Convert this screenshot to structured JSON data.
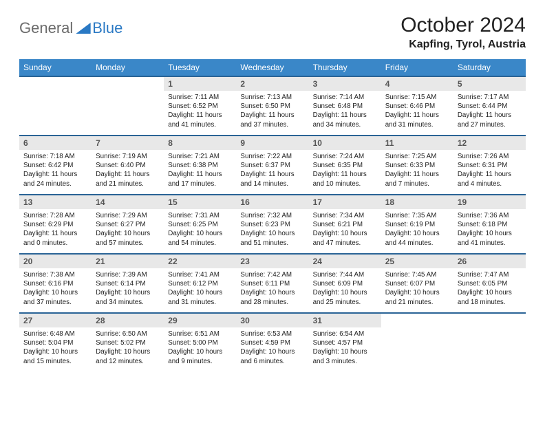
{
  "logo": {
    "word1": "General",
    "word2": "Blue"
  },
  "title": "October 2024",
  "subtitle": "Kapfing, Tyrol, Austria",
  "colors": {
    "header_bg": "#3a87c8",
    "header_border": "#2a6496",
    "daynum_bg": "#e8e8e8",
    "logo_gray": "#6b6b6b",
    "logo_blue": "#2a79c4"
  },
  "weekdays": [
    "Sunday",
    "Monday",
    "Tuesday",
    "Wednesday",
    "Thursday",
    "Friday",
    "Saturday"
  ],
  "weeks": [
    [
      null,
      null,
      {
        "n": "1",
        "sr": "7:11 AM",
        "ss": "6:52 PM",
        "dl": "11 hours and 41 minutes."
      },
      {
        "n": "2",
        "sr": "7:13 AM",
        "ss": "6:50 PM",
        "dl": "11 hours and 37 minutes."
      },
      {
        "n": "3",
        "sr": "7:14 AM",
        "ss": "6:48 PM",
        "dl": "11 hours and 34 minutes."
      },
      {
        "n": "4",
        "sr": "7:15 AM",
        "ss": "6:46 PM",
        "dl": "11 hours and 31 minutes."
      },
      {
        "n": "5",
        "sr": "7:17 AM",
        "ss": "6:44 PM",
        "dl": "11 hours and 27 minutes."
      }
    ],
    [
      {
        "n": "6",
        "sr": "7:18 AM",
        "ss": "6:42 PM",
        "dl": "11 hours and 24 minutes."
      },
      {
        "n": "7",
        "sr": "7:19 AM",
        "ss": "6:40 PM",
        "dl": "11 hours and 21 minutes."
      },
      {
        "n": "8",
        "sr": "7:21 AM",
        "ss": "6:38 PM",
        "dl": "11 hours and 17 minutes."
      },
      {
        "n": "9",
        "sr": "7:22 AM",
        "ss": "6:37 PM",
        "dl": "11 hours and 14 minutes."
      },
      {
        "n": "10",
        "sr": "7:24 AM",
        "ss": "6:35 PM",
        "dl": "11 hours and 10 minutes."
      },
      {
        "n": "11",
        "sr": "7:25 AM",
        "ss": "6:33 PM",
        "dl": "11 hours and 7 minutes."
      },
      {
        "n": "12",
        "sr": "7:26 AM",
        "ss": "6:31 PM",
        "dl": "11 hours and 4 minutes."
      }
    ],
    [
      {
        "n": "13",
        "sr": "7:28 AM",
        "ss": "6:29 PM",
        "dl": "11 hours and 0 minutes."
      },
      {
        "n": "14",
        "sr": "7:29 AM",
        "ss": "6:27 PM",
        "dl": "10 hours and 57 minutes."
      },
      {
        "n": "15",
        "sr": "7:31 AM",
        "ss": "6:25 PM",
        "dl": "10 hours and 54 minutes."
      },
      {
        "n": "16",
        "sr": "7:32 AM",
        "ss": "6:23 PM",
        "dl": "10 hours and 51 minutes."
      },
      {
        "n": "17",
        "sr": "7:34 AM",
        "ss": "6:21 PM",
        "dl": "10 hours and 47 minutes."
      },
      {
        "n": "18",
        "sr": "7:35 AM",
        "ss": "6:19 PM",
        "dl": "10 hours and 44 minutes."
      },
      {
        "n": "19",
        "sr": "7:36 AM",
        "ss": "6:18 PM",
        "dl": "10 hours and 41 minutes."
      }
    ],
    [
      {
        "n": "20",
        "sr": "7:38 AM",
        "ss": "6:16 PM",
        "dl": "10 hours and 37 minutes."
      },
      {
        "n": "21",
        "sr": "7:39 AM",
        "ss": "6:14 PM",
        "dl": "10 hours and 34 minutes."
      },
      {
        "n": "22",
        "sr": "7:41 AM",
        "ss": "6:12 PM",
        "dl": "10 hours and 31 minutes."
      },
      {
        "n": "23",
        "sr": "7:42 AM",
        "ss": "6:11 PM",
        "dl": "10 hours and 28 minutes."
      },
      {
        "n": "24",
        "sr": "7:44 AM",
        "ss": "6:09 PM",
        "dl": "10 hours and 25 minutes."
      },
      {
        "n": "25",
        "sr": "7:45 AM",
        "ss": "6:07 PM",
        "dl": "10 hours and 21 minutes."
      },
      {
        "n": "26",
        "sr": "7:47 AM",
        "ss": "6:05 PM",
        "dl": "10 hours and 18 minutes."
      }
    ],
    [
      {
        "n": "27",
        "sr": "6:48 AM",
        "ss": "5:04 PM",
        "dl": "10 hours and 15 minutes."
      },
      {
        "n": "28",
        "sr": "6:50 AM",
        "ss": "5:02 PM",
        "dl": "10 hours and 12 minutes."
      },
      {
        "n": "29",
        "sr": "6:51 AM",
        "ss": "5:00 PM",
        "dl": "10 hours and 9 minutes."
      },
      {
        "n": "30",
        "sr": "6:53 AM",
        "ss": "4:59 PM",
        "dl": "10 hours and 6 minutes."
      },
      {
        "n": "31",
        "sr": "6:54 AM",
        "ss": "4:57 PM",
        "dl": "10 hours and 3 minutes."
      },
      null,
      null
    ]
  ],
  "labels": {
    "sunrise": "Sunrise:",
    "sunset": "Sunset:",
    "daylight": "Daylight:"
  }
}
